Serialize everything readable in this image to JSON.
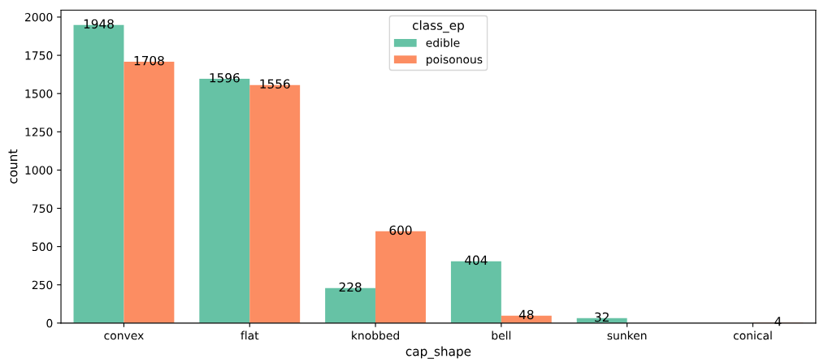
{
  "chart_data": {
    "type": "bar",
    "xlabel": "cap_shape",
    "ylabel": "count",
    "legend_title": "class_ep",
    "categories": [
      "convex",
      "flat",
      "knobbed",
      "bell",
      "sunken",
      "conical"
    ],
    "series": [
      {
        "name": "edible",
        "color": "#66c2a5",
        "values": [
          1948,
          1596,
          228,
          404,
          32,
          0
        ],
        "value_labels": [
          "1948",
          "1596",
          "228",
          "404",
          "32",
          null
        ]
      },
      {
        "name": "poisonous",
        "color": "#fc8d62",
        "values": [
          1708,
          1556,
          600,
          48,
          0,
          4
        ],
        "value_labels": [
          "1708",
          "1556",
          "600",
          "48",
          null,
          "4"
        ]
      }
    ],
    "ylim": [
      0,
      2045
    ],
    "yticks": [
      0,
      250,
      500,
      750,
      1000,
      1250,
      1500,
      1750,
      2000
    ],
    "legend": "top",
    "grid": false
  }
}
